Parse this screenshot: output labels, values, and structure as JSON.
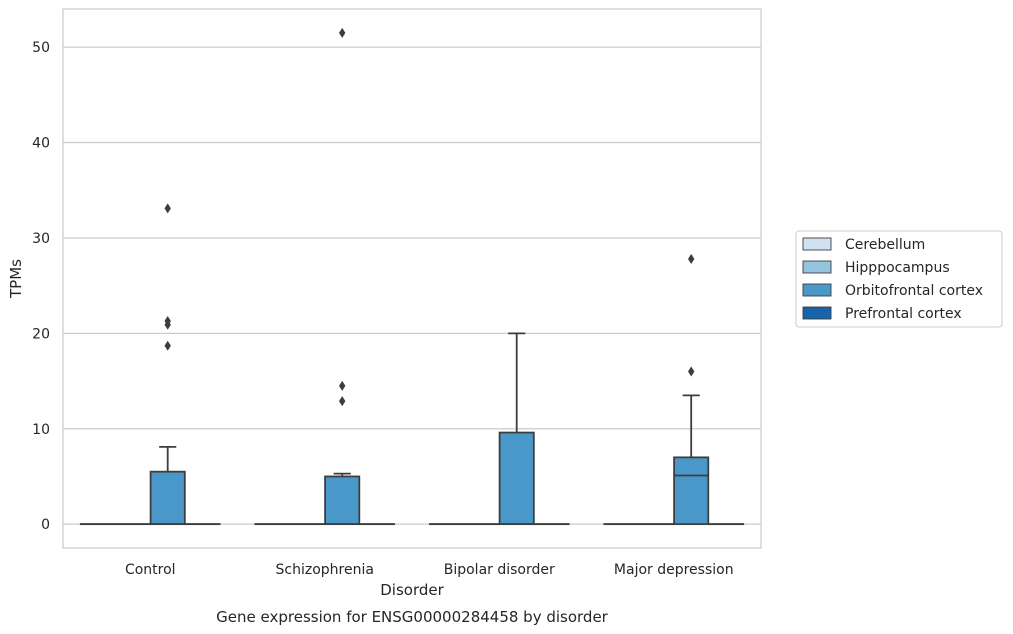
{
  "chart_data": {
    "type": "box",
    "title": "Gene expression for ENSG00000284458 by disorder",
    "xlabel": "Disorder",
    "ylabel": "TPMs",
    "ylim": [
      -2.5,
      54
    ],
    "yticks": [
      0,
      10,
      20,
      30,
      40,
      50
    ],
    "categories": [
      "Control",
      "Schizophrenia",
      "Bipolar disorder",
      "Major depression"
    ],
    "grid": true,
    "legend_position": "right",
    "series": [
      {
        "name": "Cerebellum",
        "color": "#d0e1f2",
        "boxes": [
          {
            "q1": 0,
            "median": 0,
            "q3": 0,
            "whisker_low": 0,
            "whisker_high": 0,
            "outliers": []
          },
          {
            "q1": 0,
            "median": 0,
            "q3": 0,
            "whisker_low": 0,
            "whisker_high": 0,
            "outliers": []
          },
          {
            "q1": 0,
            "median": 0,
            "q3": 0,
            "whisker_low": 0,
            "whisker_high": 0,
            "outliers": []
          },
          {
            "q1": 0,
            "median": 0,
            "q3": 0,
            "whisker_low": 0,
            "whisker_high": 0,
            "outliers": []
          }
        ]
      },
      {
        "name": "Hipppocampus",
        "color": "#94c4df",
        "boxes": [
          {
            "q1": 0,
            "median": 0,
            "q3": 0,
            "whisker_low": 0,
            "whisker_high": 0,
            "outliers": []
          },
          {
            "q1": 0,
            "median": 0,
            "q3": 0,
            "whisker_low": 0,
            "whisker_high": 0,
            "outliers": []
          },
          {
            "q1": 0,
            "median": 0,
            "q3": 0,
            "whisker_low": 0,
            "whisker_high": 0,
            "outliers": []
          },
          {
            "q1": 0,
            "median": 0,
            "q3": 0,
            "whisker_low": 0,
            "whisker_high": 0,
            "outliers": []
          }
        ]
      },
      {
        "name": "Orbitofrontal cortex",
        "color": "#4a98c9",
        "boxes": [
          {
            "q1": 0,
            "median": 0,
            "q3": 5.5,
            "whisker_low": 0,
            "whisker_high": 8.1,
            "outliers": [
              33.1,
              21.3,
              20.9,
              18.7
            ]
          },
          {
            "q1": 0,
            "median": 0,
            "q3": 5.0,
            "whisker_low": 0,
            "whisker_high": 5.3,
            "outliers": [
              51.5,
              14.5,
              12.9
            ]
          },
          {
            "q1": 0,
            "median": 0,
            "q3": 9.6,
            "whisker_low": 0,
            "whisker_high": 20.0,
            "outliers": []
          },
          {
            "q1": 0,
            "median": 5.1,
            "q3": 7.0,
            "whisker_low": 0,
            "whisker_high": 13.5,
            "outliers": [
              27.8,
              16.0
            ]
          }
        ]
      },
      {
        "name": "Prefrontal cortex",
        "color": "#1764ab",
        "boxes": [
          {
            "q1": 0,
            "median": 0,
            "q3": 0,
            "whisker_low": 0,
            "whisker_high": 0,
            "outliers": []
          },
          {
            "q1": 0,
            "median": 0,
            "q3": 0,
            "whisker_low": 0,
            "whisker_high": 0,
            "outliers": []
          },
          {
            "q1": 0,
            "median": 0,
            "q3": 0,
            "whisker_low": 0,
            "whisker_high": 0,
            "outliers": []
          },
          {
            "q1": 0,
            "median": 0,
            "q3": 0,
            "whisker_low": 0,
            "whisker_high": 0,
            "outliers": []
          }
        ]
      }
    ]
  }
}
